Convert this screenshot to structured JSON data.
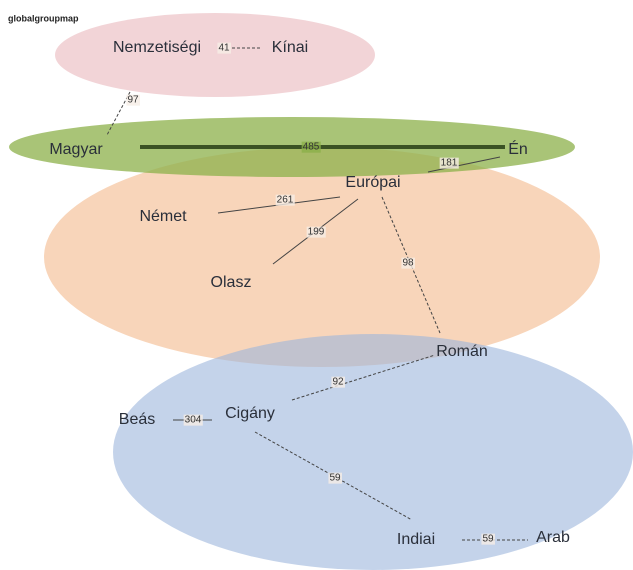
{
  "title": "globalgroupmap",
  "nodes": [
    {
      "label": "Nemzetiségi"
    },
    {
      "label": "Kínai"
    },
    {
      "label": "Magyar"
    },
    {
      "label": "Én"
    },
    {
      "label": "Európai"
    },
    {
      "label": "Német"
    },
    {
      "label": "Olasz"
    },
    {
      "label": "Román"
    },
    {
      "label": "Beás"
    },
    {
      "label": "Cigány"
    },
    {
      "label": "Indiai"
    },
    {
      "label": "Arab"
    }
  ],
  "edges": [
    {
      "label": 41
    },
    {
      "label": 97
    },
    {
      "label": 485
    },
    {
      "label": 181
    },
    {
      "label": 261
    },
    {
      "label": 199
    },
    {
      "label": 98
    },
    {
      "label": 92
    },
    {
      "label": 304
    },
    {
      "label": 59
    },
    {
      "label": 59
    }
  ]
}
